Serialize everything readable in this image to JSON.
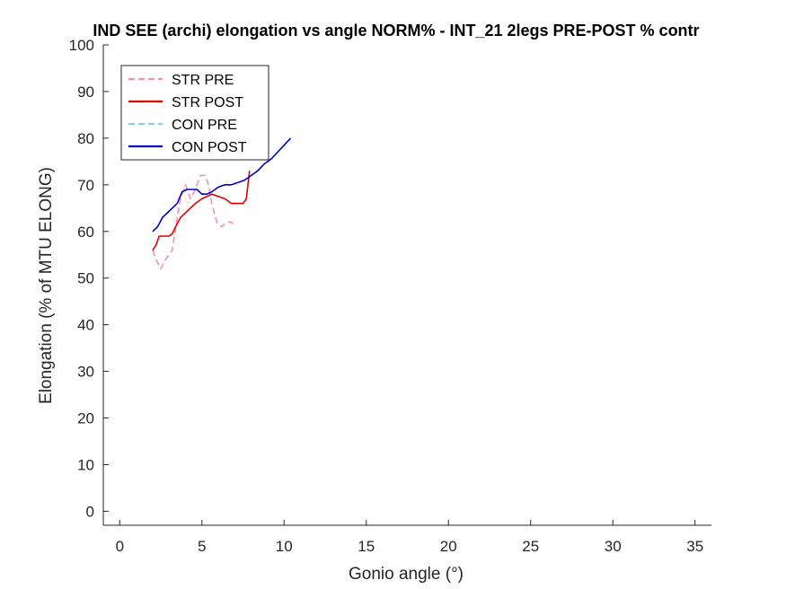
{
  "chart_data": {
    "type": "line",
    "title": "IND SEE (archi) elongation vs angle NORM% - INT_21 2legs PRE-POST % contr",
    "xlabel": "Gonio angle (°)",
    "ylabel": "Elongation (% of MTU ELONG)",
    "xlim": [
      -1,
      36
    ],
    "ylim": [
      -3,
      100
    ],
    "xticks": [
      0,
      5,
      10,
      15,
      20,
      25,
      30,
      35
    ],
    "yticks": [
      0,
      10,
      20,
      30,
      40,
      50,
      60,
      70,
      80,
      90,
      100
    ],
    "grid": false,
    "legend_position": "top-left",
    "series": [
      {
        "name": "STR PRE",
        "color": "#f48fb1",
        "dash": "dashed",
        "points": [
          [
            2.0,
            56
          ],
          [
            2.2,
            54
          ],
          [
            2.5,
            52
          ],
          [
            2.8,
            54
          ],
          [
            3.0,
            55
          ],
          [
            3.2,
            56
          ],
          [
            3.5,
            63
          ],
          [
            3.7,
            67
          ],
          [
            4.0,
            70
          ],
          [
            4.3,
            67
          ],
          [
            4.6,
            69
          ],
          [
            4.9,
            72
          ],
          [
            5.2,
            72
          ],
          [
            5.4,
            70
          ],
          [
            5.6,
            66
          ],
          [
            5.9,
            62
          ],
          [
            6.2,
            61
          ],
          [
            6.5,
            62
          ],
          [
            6.8,
            62
          ],
          [
            7.0,
            61
          ]
        ]
      },
      {
        "name": "STR POST",
        "color": "#e00000",
        "dash": "solid",
        "points": [
          [
            2.0,
            56
          ],
          [
            2.2,
            57
          ],
          [
            2.4,
            59
          ],
          [
            2.7,
            59
          ],
          [
            3.0,
            59
          ],
          [
            3.2,
            59.5
          ],
          [
            3.4,
            61
          ],
          [
            3.7,
            63
          ],
          [
            4.0,
            64
          ],
          [
            4.3,
            65
          ],
          [
            4.6,
            66
          ],
          [
            5.0,
            67
          ],
          [
            5.3,
            67.5
          ],
          [
            5.6,
            68
          ],
          [
            6.0,
            67.5
          ],
          [
            6.4,
            67
          ],
          [
            6.8,
            66
          ],
          [
            7.2,
            66
          ],
          [
            7.5,
            66
          ],
          [
            7.7,
            67
          ],
          [
            7.8,
            70
          ],
          [
            7.9,
            73
          ]
        ]
      },
      {
        "name": "CON PRE",
        "color": "#87ceeb",
        "dash": "dashed",
        "points": []
      },
      {
        "name": "CON POST",
        "color": "#0000c8",
        "dash": "solid",
        "points": [
          [
            2.0,
            60
          ],
          [
            2.3,
            61
          ],
          [
            2.6,
            63
          ],
          [
            2.9,
            64
          ],
          [
            3.2,
            65
          ],
          [
            3.5,
            66
          ],
          [
            3.8,
            68.5
          ],
          [
            4.1,
            69
          ],
          [
            4.4,
            69
          ],
          [
            4.7,
            69
          ],
          [
            5.0,
            68
          ],
          [
            5.3,
            68
          ],
          [
            5.6,
            68.5
          ],
          [
            6.0,
            69.5
          ],
          [
            6.4,
            70
          ],
          [
            6.8,
            70
          ],
          [
            7.2,
            70.5
          ],
          [
            7.6,
            71
          ],
          [
            8.0,
            72
          ],
          [
            8.4,
            73
          ],
          [
            8.8,
            74.5
          ],
          [
            9.2,
            75.5
          ],
          [
            9.6,
            77
          ],
          [
            10.0,
            78.5
          ],
          [
            10.4,
            80
          ]
        ]
      }
    ]
  }
}
